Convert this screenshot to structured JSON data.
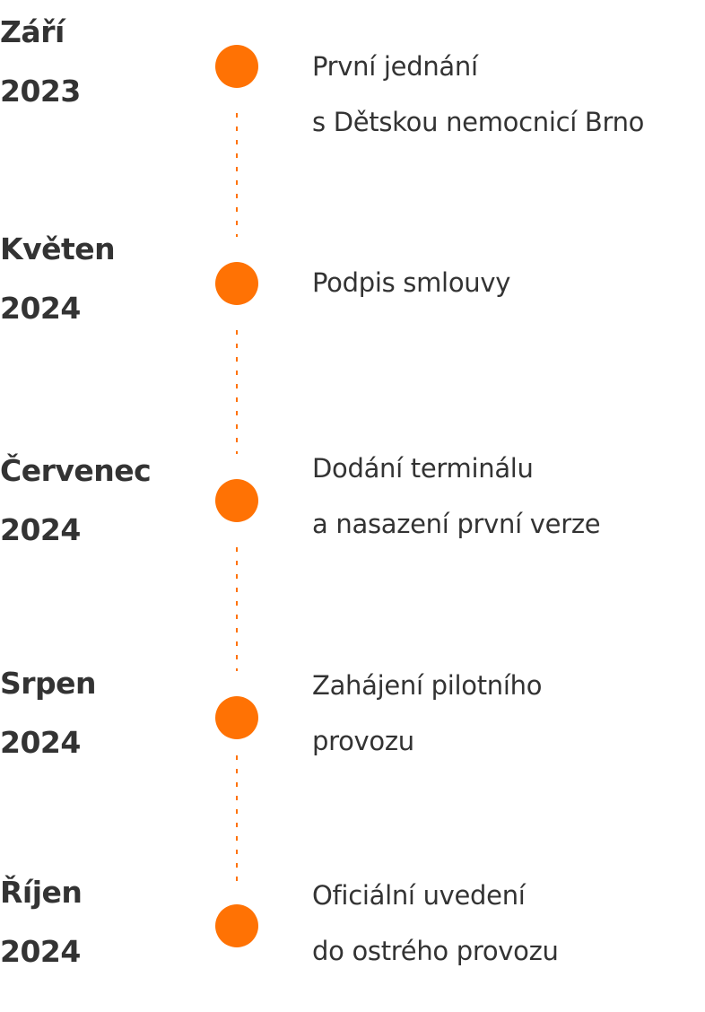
{
  "accent_color": "#ff7204",
  "events": [
    {
      "month": "Září",
      "year": "2023",
      "lines": [
        "První jednání",
        "s Dětskou nemocnicí Brno"
      ]
    },
    {
      "month": "Květen",
      "year": "2024",
      "lines": [
        "Podpis smlouvy"
      ]
    },
    {
      "month": "Červenec",
      "year": "2024",
      "lines": [
        "Dodání terminálu",
        "a nasazení první verze"
      ]
    },
    {
      "month": "Srpen",
      "year": "2024",
      "lines": [
        "Zahájení pilotního",
        "provozu"
      ]
    },
    {
      "month": "Říjen",
      "year": "2024",
      "lines": [
        "Oficiální uvedení",
        "do ostrého provozu"
      ]
    }
  ]
}
